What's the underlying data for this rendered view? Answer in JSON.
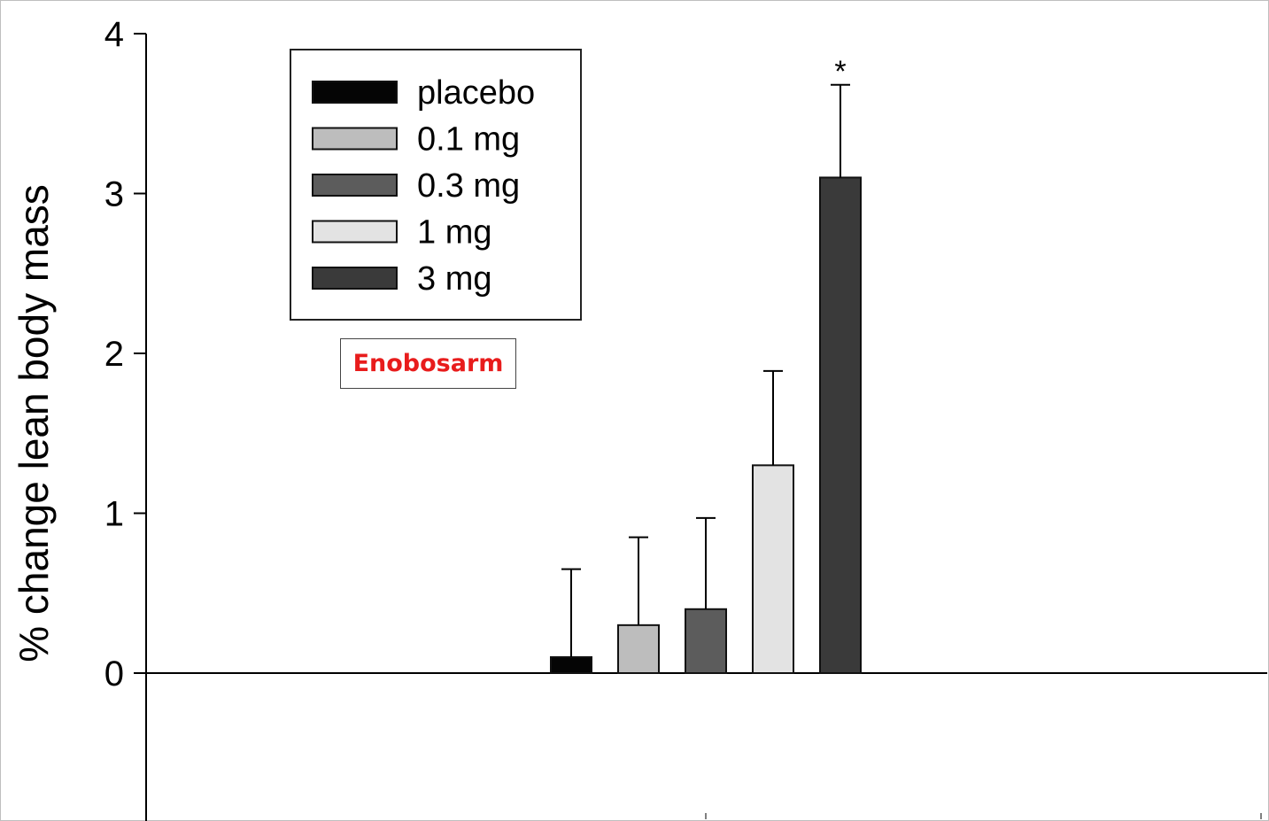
{
  "chart_data": {
    "type": "bar",
    "title": "",
    "xlabel": "",
    "ylabel": "% change lean body mass",
    "ylim": [
      -0.9,
      4
    ],
    "yticks": [
      0,
      1,
      2,
      3,
      4
    ],
    "categories": [
      "placebo",
      "0.1 mg",
      "0.3 mg",
      "1 mg",
      "3 mg"
    ],
    "values": [
      0.1,
      0.3,
      0.4,
      1.3,
      3.1
    ],
    "error_upper": [
      0.65,
      0.85,
      0.97,
      1.89,
      3.68
    ],
    "colors": [
      "#050505",
      "#bdbdbd",
      "#5c5c5c",
      "#e3e3e3",
      "#3a3a3a"
    ],
    "legend": {
      "position": "top-left",
      "entries": [
        "placebo",
        "0.1 mg",
        "0.3 mg",
        "1 mg",
        "3 mg"
      ]
    },
    "annotations": [
      {
        "text": "*",
        "category": "3 mg"
      }
    ],
    "label_box": {
      "text": "Enobosarm",
      "color": "#e81c1c"
    }
  }
}
